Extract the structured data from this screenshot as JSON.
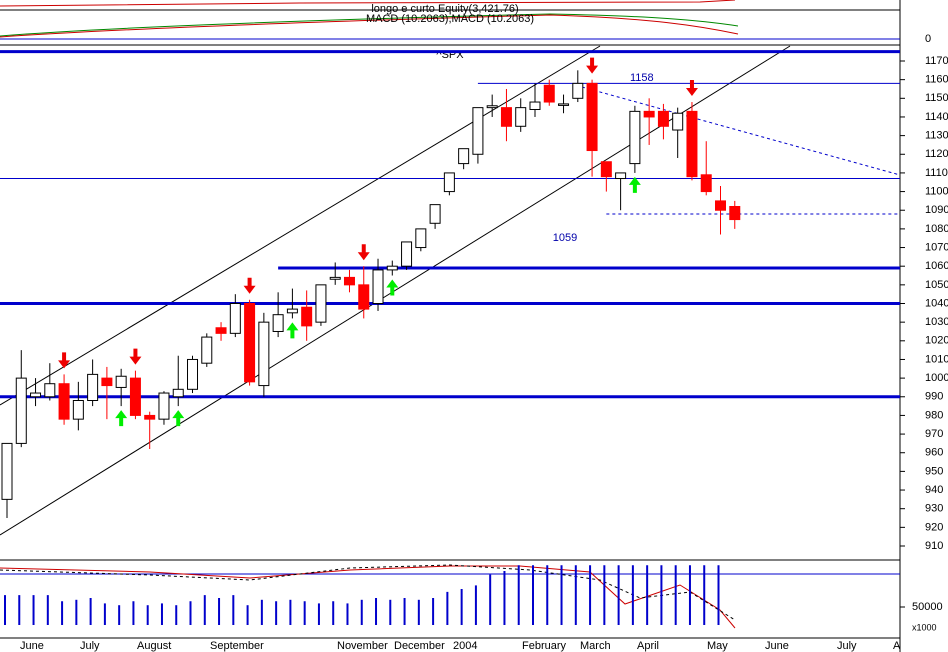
{
  "chart_data": {
    "type": "candlestick",
    "title": "^SPX",
    "top_panel": {
      "label1": "longo e curto Equity(3,421.76)",
      "label2": "MACD (10.2063),MACD (10.2063)",
      "yticks": [
        0
      ]
    },
    "open": [
      935,
      965,
      990,
      990,
      997,
      978,
      988,
      1000,
      995,
      1000,
      980,
      978,
      990,
      994,
      1008,
      1027,
      1024,
      1040,
      996,
      1025,
      1035,
      1038,
      1030,
      1053,
      1054,
      1050,
      1040,
      1058,
      1060,
      1070,
      1083,
      1100,
      1115,
      1120,
      1145,
      1145,
      1135,
      1144,
      1157,
      1147,
      1150,
      1158,
      1116,
      1107,
      1115,
      1143,
      1143,
      1133,
      1143,
      1109,
      1095,
      1092
    ],
    "high": [
      965,
      1015,
      1000,
      1008,
      1002,
      998,
      1010,
      1006,
      1005,
      1004,
      982,
      993,
      1012,
      1012,
      1024,
      1030,
      1045,
      1042,
      1035,
      1046,
      1048,
      1047,
      1050,
      1062,
      1058,
      1060,
      1064,
      1063,
      1073,
      1080,
      1093,
      1110,
      1123,
      1145,
      1152,
      1155,
      1150,
      1158,
      1160,
      1152,
      1165,
      1160,
      1116,
      1110,
      1146,
      1150,
      1147,
      1145,
      1148,
      1127,
      1103,
      1095
    ],
    "low": [
      925,
      963,
      985,
      988,
      975,
      972,
      985,
      978,
      985,
      978,
      962,
      975,
      985,
      992,
      1006,
      1020,
      1022,
      996,
      990,
      1022,
      1032,
      1020,
      1028,
      1050,
      1046,
      1032,
      1036,
      1055,
      1058,
      1068,
      1080,
      1098,
      1112,
      1115,
      1140,
      1127,
      1132,
      1140,
      1146,
      1142,
      1148,
      1108,
      1100,
      1090,
      1110,
      1125,
      1128,
      1118,
      1106,
      1098,
      1077,
      1080
    ],
    "close": [
      965,
      1000,
      992,
      997,
      978,
      988,
      1002,
      996,
      1001,
      980,
      978,
      992,
      994,
      1010,
      1022,
      1024,
      1040,
      998,
      1030,
      1034,
      1037,
      1028,
      1050,
      1054,
      1050,
      1037,
      1058,
      1060,
      1073,
      1080,
      1093,
      1110,
      1123,
      1145,
      1146,
      1135,
      1145,
      1148,
      1148,
      1147,
      1158,
      1122,
      1108,
      1110,
      1143,
      1140,
      1135,
      1142,
      1108,
      1100,
      1090,
      1085
    ],
    "up_color": "#ffffff",
    "down_color": "#ff0000",
    "ylim": [
      905,
      1182
    ],
    "yticks": [
      910,
      920,
      930,
      940,
      950,
      960,
      970,
      980,
      990,
      1000,
      1010,
      1020,
      1030,
      1040,
      1050,
      1060,
      1070,
      1080,
      1090,
      1100,
      1110,
      1120,
      1130,
      1140,
      1150,
      1160,
      1170
    ],
    "levels": [
      {
        "value": 1175,
        "from": 0,
        "width": 3
      },
      {
        "value": 1158,
        "from": 33,
        "width": 1
      },
      {
        "value": 1107,
        "from": 0,
        "width": 1
      },
      {
        "value": 1088,
        "from": 42,
        "width": 1,
        "dashed": true
      },
      {
        "value": 1059,
        "from": 19,
        "width": 3
      },
      {
        "value": 1040,
        "from": 0,
        "width": 3
      },
      {
        "value": 990,
        "from": 0,
        "width": 3
      }
    ],
    "sell_signals": [
      4,
      9,
      17,
      25,
      41,
      48
    ],
    "buy_signals": [
      8,
      12,
      20,
      27,
      44
    ],
    "volume": {
      "values": [
        83000,
        83000,
        83000,
        83000,
        66000,
        70000,
        75000,
        60000,
        55000,
        66000,
        55000,
        60000,
        55000,
        66000,
        83000,
        75000,
        83000,
        55000,
        70000,
        66000,
        70000,
        66000,
        60000,
        66000,
        60000,
        70000,
        75000,
        70000,
        75000,
        70000,
        75000,
        92000,
        100000,
        110000,
        140000,
        150000,
        166000,
        166000,
        166000,
        166000,
        166000,
        166000,
        166000,
        166000,
        166000,
        166000,
        166000,
        166000,
        166000,
        166000,
        166000,
        0
      ],
      "color": "#0000cc",
      "ylim": [
        0,
        180000
      ],
      "yticks": [
        50000
      ],
      "unit": "x1000"
    },
    "x_labels": [
      "June",
      "July",
      "August",
      "September",
      "November",
      "December",
      "2004",
      "February",
      "March",
      "April",
      "May",
      "June",
      "July",
      "A"
    ]
  }
}
